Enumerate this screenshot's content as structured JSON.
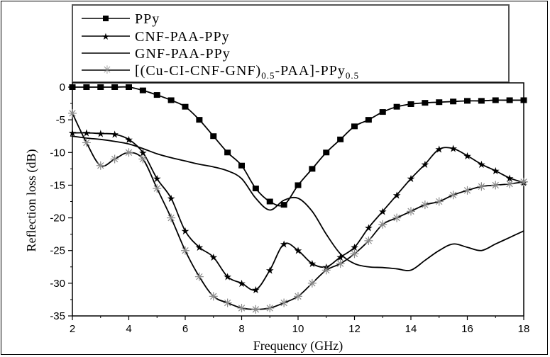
{
  "chart_data": {
    "type": "line",
    "title": "",
    "xlabel": "Frequency (GHz)",
    "ylabel": "Reflection loss (dB)",
    "xlim": [
      2,
      18
    ],
    "ylim": [
      -35,
      0
    ],
    "xticks": [
      2,
      4,
      6,
      8,
      10,
      12,
      14,
      16,
      18
    ],
    "yticks": [
      0,
      -5,
      -10,
      -15,
      -20,
      -25,
      -30,
      -35
    ],
    "grid": false,
    "legend_position": "top",
    "x": [
      2,
      2.5,
      3,
      3.5,
      4,
      4.5,
      5,
      5.5,
      6,
      6.5,
      7,
      7.5,
      8,
      8.5,
      9,
      9.5,
      10,
      10.5,
      11,
      11.5,
      12,
      12.5,
      13,
      13.5,
      14,
      14.5,
      15,
      15.5,
      16,
      16.5,
      17,
      17.5,
      18
    ],
    "series": [
      {
        "name": "PPy",
        "marker": "square",
        "values": [
          0,
          0,
          0,
          0,
          0,
          -0.5,
          -1.2,
          -2,
          -3,
          -5,
          -7.5,
          -10,
          -12,
          -15.5,
          -17.5,
          -18,
          -15,
          -12.5,
          -10,
          -8,
          -6,
          -5,
          -3.8,
          -3,
          -2.6,
          -2.4,
          -2.3,
          -2.2,
          -2.1,
          -2.1,
          -2,
          -2,
          -2
        ]
      },
      {
        "name": "CNF-PAA-PPy",
        "marker": "star",
        "values": [
          -7,
          -7,
          -7.1,
          -7.2,
          -8,
          -10,
          -14,
          -17,
          -22,
          -24.5,
          -26,
          -29,
          -30,
          -31,
          -28,
          -24,
          -25,
          -27,
          -27.5,
          -26,
          -24.5,
          -21.5,
          -19,
          -16.5,
          -14,
          -11.8,
          -9.5,
          -9.4,
          -10.5,
          -11.8,
          -12.8,
          -13.9,
          -14.6
        ]
      },
      {
        "name": "GNF-PAA-PPy",
        "marker": "none",
        "values": [
          -7.5,
          -7.8,
          -8,
          -8.3,
          -8.7,
          -9.4,
          -10.2,
          -10.8,
          -11.3,
          -11.8,
          -12.2,
          -12.8,
          -14,
          -17,
          -18.8,
          -17.3,
          -17,
          -19,
          -22.5,
          -25.5,
          -27,
          -27.5,
          -27.6,
          -27.8,
          -28,
          -26.5,
          -25,
          -24,
          -24.5,
          -25,
          -24,
          -23,
          -22
        ]
      },
      {
        "name": "[(Cu-CI-CNF-GNF)0.5-PAA]-PPy0.5",
        "marker": "asterisk",
        "values": [
          -4,
          -8.5,
          -12,
          -11,
          -10,
          -11,
          -15.5,
          -20,
          -25,
          -29,
          -32,
          -33,
          -33.8,
          -34,
          -33.8,
          -33,
          -32,
          -30,
          -28,
          -27,
          -25.5,
          -23.5,
          -21,
          -20,
          -19,
          -18,
          -17.5,
          -16.5,
          -15.8,
          -15.2,
          -15,
          -14.8,
          -14.5
        ]
      }
    ]
  },
  "legend": {
    "items": [
      {
        "label": "PPy",
        "marker": "square"
      },
      {
        "label": "CNF-PAA-PPy",
        "marker": "star"
      },
      {
        "label": "GNF-PAA-PPy",
        "marker": "none"
      },
      {
        "label_main": "[(Cu-CI-CNF-GNF)",
        "sub1": "0.5",
        "label_mid": "-PAA]-PPy",
        "sub2": "0.5",
        "marker": "asterisk"
      }
    ]
  },
  "axes": {
    "xlabel": "Frequency (GHz)",
    "ylabel": "Reflection loss (dB)",
    "x_tick_labels": [
      "2",
      "4",
      "6",
      "8",
      "10",
      "12",
      "14",
      "16",
      "18"
    ],
    "y_tick_labels": [
      "0",
      "-5",
      "-10",
      "-15",
      "-20",
      "-25",
      "-30",
      "-35"
    ]
  },
  "colors": {
    "line": "#000000",
    "asterisk_marker": "#8a8a8a",
    "legend_border": "#555555"
  }
}
